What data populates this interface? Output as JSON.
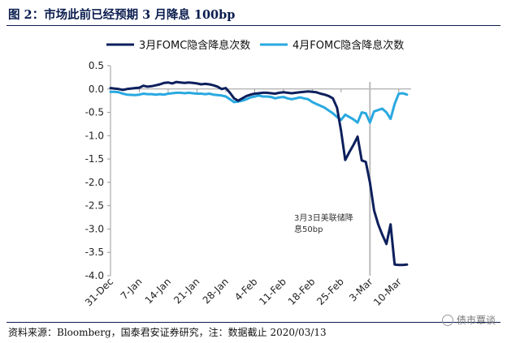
{
  "figure": {
    "title": "图 2：市场此前已经预期 3 月降息 100bp",
    "source": "资料来源：Bloomberg，国泰君安证券研究，注：数据截止 2020/03/13",
    "watermark": "债市覃谈"
  },
  "chart_data": {
    "type": "line",
    "title": "图 2：市场此前已经预期 3 月降息 100bp",
    "xlabel": "",
    "ylabel": "",
    "ylim": [
      -4.0,
      0.5
    ],
    "yticks": [
      0.5,
      0.0,
      -0.5,
      -1.0,
      -1.5,
      -2.0,
      -2.5,
      -3.0,
      -3.5,
      -4.0
    ],
    "ytick_labels": [
      "0.5",
      "0.0",
      "-0.5",
      "-1.0",
      "-1.5",
      "-2.0",
      "-2.5",
      "-3.0",
      "-3.5",
      "-4.0"
    ],
    "xrange_days": [
      0,
      73
    ],
    "xtick_days": [
      0,
      7,
      14,
      21,
      28,
      35,
      42,
      49,
      56,
      63,
      70
    ],
    "xtick_labels": [
      "31-Dec",
      "7-Jan",
      "14-Jan",
      "21-Jan",
      "28-Jan",
      "4-Feb",
      "11-Feb",
      "18-Feb",
      "25-Feb",
      "3-Mar",
      "10-Mar"
    ],
    "grid": false,
    "legend_position": "top",
    "series": [
      {
        "name": "3月FOMC隐含降息次数",
        "color": "#0d1f5c",
        "x": [
          0,
          1,
          2,
          3,
          4,
          6,
          7,
          8,
          9,
          10,
          11,
          12,
          13,
          14,
          15,
          16,
          17,
          18,
          19,
          20,
          21,
          22,
          23,
          24,
          25,
          26,
          27,
          28,
          29,
          30,
          31,
          32,
          33,
          34,
          35,
          36,
          37,
          38,
          39,
          40,
          41,
          42,
          43,
          44,
          45,
          46,
          47,
          48,
          49,
          50,
          51,
          52,
          53,
          54,
          55,
          56,
          57,
          58,
          59,
          60,
          61,
          62,
          63,
          64,
          65,
          66,
          67,
          68,
          69,
          70,
          71,
          72
        ],
        "y": [
          0.02,
          0.01,
          0.0,
          -0.02,
          0.0,
          0.02,
          0.03,
          0.07,
          0.05,
          0.06,
          0.08,
          0.1,
          0.13,
          0.14,
          0.12,
          0.15,
          0.14,
          0.13,
          0.14,
          0.13,
          0.12,
          0.1,
          0.11,
          0.1,
          0.08,
          0.05,
          0.0,
          0.02,
          -0.08,
          -0.2,
          -0.25,
          -0.2,
          -0.15,
          -0.12,
          -0.1,
          -0.09,
          -0.08,
          -0.08,
          -0.09,
          -0.1,
          -0.08,
          -0.07,
          -0.08,
          -0.09,
          -0.08,
          -0.07,
          -0.06,
          -0.05,
          -0.06,
          -0.07,
          -0.1,
          -0.12,
          -0.15,
          -0.2,
          -0.4,
          -0.9,
          -1.52,
          -1.35,
          -1.2,
          -1.02,
          -1.53,
          -1.56,
          -2.0,
          -2.6,
          -2.9,
          -3.12,
          -3.32,
          -2.9,
          -3.76,
          -3.77,
          -3.77,
          -3.76
        ]
      },
      {
        "name": "4月FOMC隐含降息次数",
        "color": "#29a9e0",
        "x": [
          0,
          1,
          2,
          3,
          4,
          6,
          7,
          8,
          9,
          10,
          11,
          12,
          13,
          14,
          15,
          16,
          17,
          18,
          19,
          20,
          21,
          22,
          23,
          24,
          25,
          26,
          27,
          28,
          29,
          30,
          31,
          32,
          33,
          34,
          35,
          36,
          37,
          38,
          39,
          40,
          41,
          42,
          43,
          44,
          45,
          46,
          47,
          48,
          49,
          50,
          51,
          52,
          53,
          54,
          55,
          56,
          57,
          58,
          59,
          60,
          61,
          62,
          63,
          64,
          65,
          66,
          67,
          68,
          69,
          70,
          71,
          72
        ],
        "y": [
          -0.06,
          -0.06,
          -0.07,
          -0.1,
          -0.12,
          -0.13,
          -0.12,
          -0.1,
          -0.11,
          -0.11,
          -0.12,
          -0.11,
          -0.12,
          -0.1,
          -0.09,
          -0.08,
          -0.08,
          -0.09,
          -0.08,
          -0.09,
          -0.1,
          -0.1,
          -0.11,
          -0.1,
          -0.12,
          -0.13,
          -0.14,
          -0.16,
          -0.22,
          -0.28,
          -0.27,
          -0.25,
          -0.22,
          -0.18,
          -0.16,
          -0.14,
          -0.16,
          -0.16,
          -0.17,
          -0.2,
          -0.18,
          -0.17,
          -0.2,
          -0.22,
          -0.2,
          -0.18,
          -0.2,
          -0.22,
          -0.28,
          -0.32,
          -0.36,
          -0.4,
          -0.46,
          -0.52,
          -0.6,
          -0.66,
          -0.55,
          -0.6,
          -0.65,
          -0.72,
          -0.5,
          -0.52,
          -0.72,
          -0.48,
          -0.45,
          -0.42,
          -0.5,
          -0.64,
          -0.32,
          -0.1,
          -0.09,
          -0.12
        ]
      }
    ],
    "annotations": [
      {
        "x_day": 63,
        "text_lines": [
          "3月3日美联储降",
          "息50bp"
        ],
        "line_color": "#bbbbbb"
      }
    ]
  }
}
